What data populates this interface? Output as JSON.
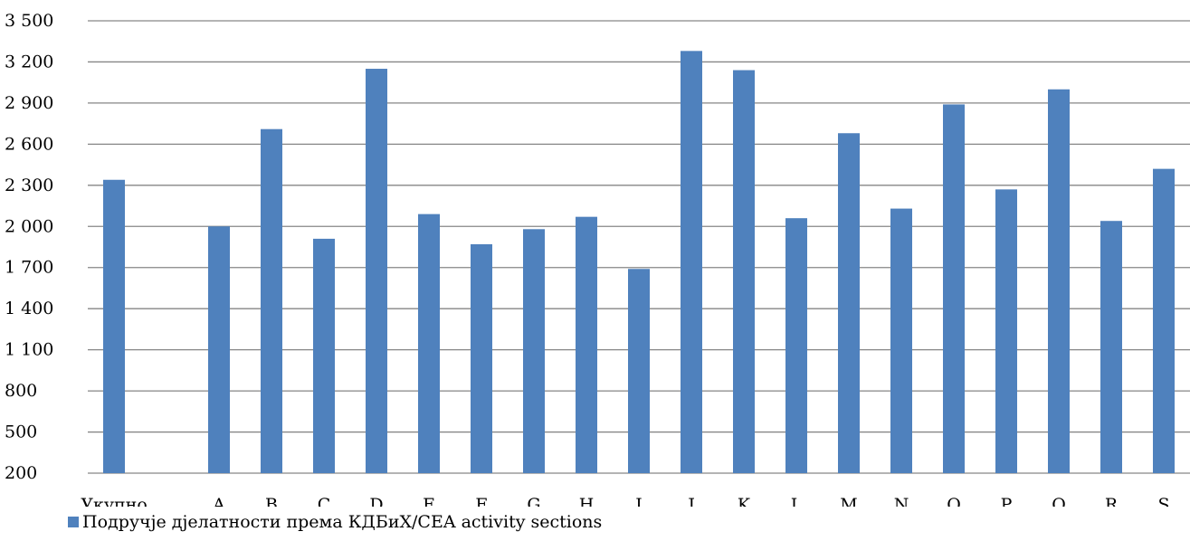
{
  "chart_data": {
    "type": "bar",
    "categories": [
      "Укупно",
      "",
      "A",
      "B",
      "C",
      "D",
      "E",
      "F",
      "G",
      "H",
      "I",
      "J",
      "K",
      "L",
      "M",
      "N",
      "O",
      "P",
      "Q",
      "R",
      "S"
    ],
    "series": [
      {
        "name": "Подручје дјелатности према КДБиХ/CEA activity sections",
        "color": "#4f81bd",
        "values": [
          2340,
          null,
          2000,
          2710,
          1910,
          3150,
          2090,
          1870,
          1980,
          2070,
          1690,
          3280,
          3140,
          2060,
          2680,
          2130,
          2890,
          2270,
          3000,
          2040,
          2420
        ]
      }
    ],
    "yticks": [
      "3 500",
      "3 200",
      "2 900",
      "2 600",
      "2 300",
      "2 000",
      "1 700",
      "1 400",
      "1 100",
      "800",
      "500",
      "200"
    ],
    "ylim": [
      200,
      3500
    ],
    "grid": true,
    "legend_position": "bottom-left",
    "title": "",
    "xlabel": "",
    "ylabel": ""
  },
  "legend": {
    "label": "Подручје дјелатности према КДБиХ/CEA activity sections"
  }
}
